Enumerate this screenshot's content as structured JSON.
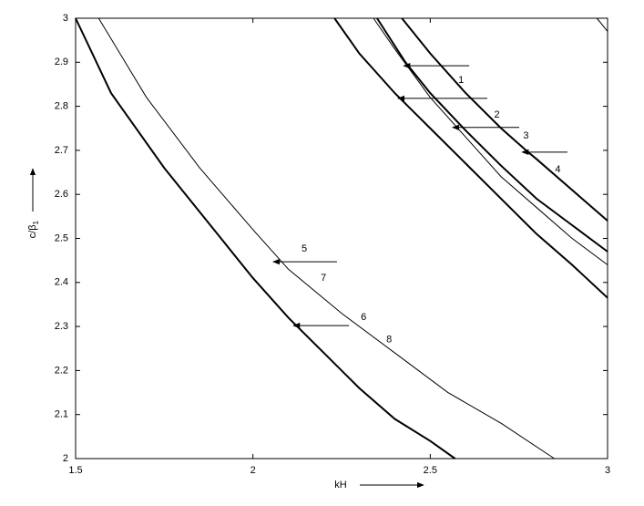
{
  "chart_data": {
    "type": "line",
    "xlabel": "kH",
    "ylabel": "c/β",
    "ylabel_sub": "1",
    "xlim": [
      1.5,
      3
    ],
    "ylim": [
      2,
      3
    ],
    "xticks": [
      1.5,
      2,
      2.5,
      3
    ],
    "yticks": [
      2,
      2.1,
      2.2,
      2.3,
      2.4,
      2.5,
      2.6,
      2.7,
      2.8,
      2.9,
      3
    ],
    "grid": false,
    "series": [
      {
        "color": "#000000",
        "linewidth": 2,
        "x": [
          1.5,
          1.6,
          1.75,
          1.9,
          2.0,
          2.1,
          2.2,
          2.3,
          2.4,
          2.5,
          2.57
        ],
        "values": [
          3.0,
          2.83,
          2.66,
          2.51,
          2.41,
          2.32,
          2.24,
          2.16,
          2.09,
          2.04,
          2.0
        ]
      },
      {
        "color": "#000000",
        "linewidth": 1,
        "x": [
          1.565,
          1.7,
          1.85,
          2.0,
          2.1,
          2.25,
          2.4,
          2.55,
          2.7,
          2.85
        ],
        "values": [
          3.0,
          2.82,
          2.66,
          2.52,
          2.43,
          2.33,
          2.24,
          2.15,
          2.08,
          2.0
        ]
      },
      {
        "color": "#000000",
        "linewidth": 2,
        "x": [
          2.23,
          2.3,
          2.4,
          2.5,
          2.6,
          2.7,
          2.8,
          2.9,
          3.0
        ],
        "values": [
          3.0,
          2.92,
          2.83,
          2.75,
          2.67,
          2.59,
          2.51,
          2.44,
          2.365
        ]
      },
      {
        "color": "#000000",
        "linewidth": 1,
        "x": [
          2.34,
          2.4,
          2.5,
          2.6,
          2.7,
          2.8,
          2.9,
          3.0
        ],
        "values": [
          3.0,
          2.93,
          2.82,
          2.73,
          2.64,
          2.57,
          2.5,
          2.44
        ]
      },
      {
        "color": "#000000",
        "linewidth": 2,
        "x": [
          2.35,
          2.43,
          2.5,
          2.6,
          2.7,
          2.8,
          2.9,
          3.0
        ],
        "values": [
          3.0,
          2.9,
          2.83,
          2.745,
          2.665,
          2.59,
          2.53,
          2.47
        ]
      },
      {
        "color": "#000000",
        "linewidth": 2,
        "x": [
          2.42,
          2.5,
          2.6,
          2.7,
          2.77,
          2.8,
          2.9,
          3.0
        ],
        "values": [
          3.0,
          2.92,
          2.83,
          2.75,
          2.7,
          2.68,
          2.61,
          2.54
        ]
      },
      {
        "color": "#000000",
        "linewidth": 1,
        "x": [
          2.97,
          3.0
        ],
        "values": [
          3.0,
          2.97
        ]
      }
    ],
    "annotations": [
      {
        "text": "1",
        "x": 2.587,
        "y": 2.859,
        "arrow": [
          2.61,
          2.892,
          2.425,
          2.892
        ]
      },
      {
        "text": "2",
        "x": 2.688,
        "y": 2.78,
        "arrow": [
          2.661,
          2.818,
          2.409,
          2.818
        ]
      },
      {
        "text": "3",
        "x": 2.77,
        "y": 2.733,
        "arrow": [
          2.751,
          2.752,
          2.563,
          2.752
        ]
      },
      {
        "text": "4",
        "x": 2.86,
        "y": 2.656,
        "arrow": [
          2.887,
          2.696,
          2.759,
          2.696
        ]
      },
      {
        "text": "5",
        "x": 2.145,
        "y": 2.476,
        "arrow": [
          2.237,
          2.447,
          2.057,
          2.447
        ]
      },
      {
        "text": "7",
        "x": 2.199,
        "y": 2.41
      },
      {
        "text": "6",
        "x": 2.312,
        "y": 2.321,
        "arrow": [
          2.271,
          2.302,
          2.114,
          2.302
        ]
      },
      {
        "text": "8",
        "x": 2.384,
        "y": 2.27
      }
    ]
  }
}
